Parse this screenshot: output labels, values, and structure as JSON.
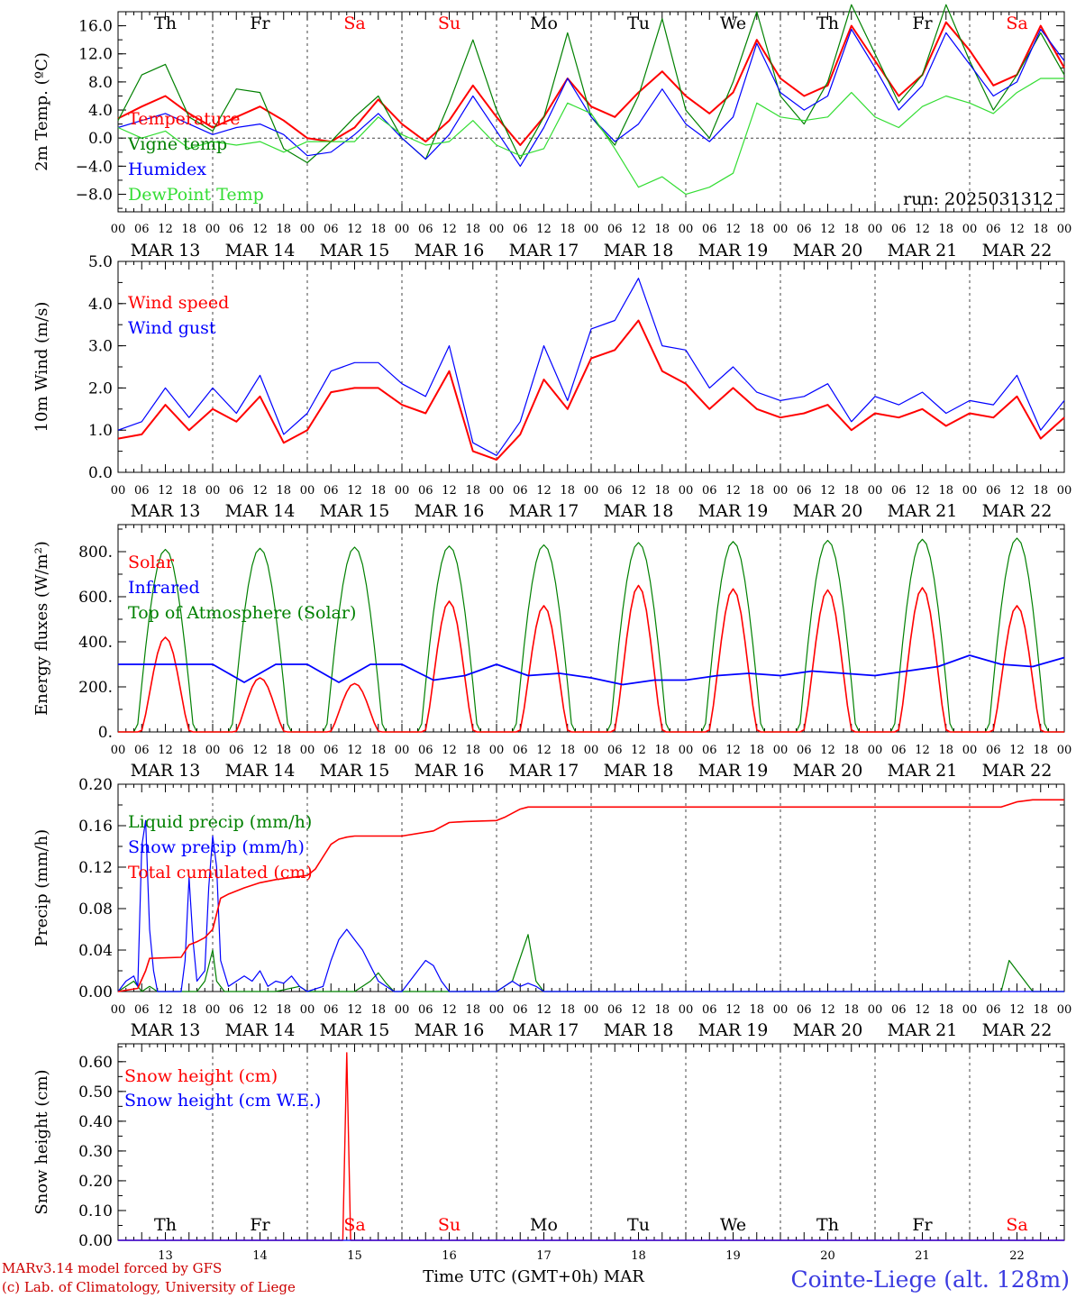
{
  "meta": {
    "footer_line1": "MARv3.14 model forced by GFS",
    "footer_line2": "(c) Lab. of Climatology, University of Liege",
    "station": "Cointe-Liege (alt. 128m)",
    "xaxis_title": "Time UTC (GMT+0h) MAR",
    "run_label": "run: 2025031312"
  },
  "days": {
    "names": [
      "Th",
      "Fr",
      "Sa",
      "Su",
      "Mo",
      "Tu",
      "We",
      "Th",
      "Fr",
      "Sa"
    ],
    "weekend_flags": [
      false,
      false,
      true,
      true,
      false,
      false,
      false,
      false,
      false,
      true
    ],
    "dates": [
      "MAR 13",
      "MAR 14",
      "MAR 15",
      "MAR 16",
      "MAR 17",
      "MAR 18",
      "MAR 19",
      "MAR 20",
      "MAR 21",
      "MAR 22"
    ],
    "numbers": [
      "13",
      "14",
      "15",
      "16",
      "17",
      "18",
      "19",
      "20",
      "21",
      "22"
    ],
    "hour_ticks": [
      "00",
      "06",
      "12",
      "18"
    ],
    "final_hour": "00"
  },
  "colors": {
    "red": "#ff0000",
    "dark_green": "#008000",
    "blue": "#0000ff",
    "light_green": "#33dd33",
    "weekend": "#ff0000"
  },
  "chart_data": [
    {
      "type": "line",
      "ylabel": "2m Temp. (ºC)",
      "ylim": [
        -10.5,
        18
      ],
      "yticks": [
        -8,
        -4,
        0,
        4,
        8,
        12,
        16
      ],
      "ytick_labels": [
        "−8.0",
        "−4.0",
        "0.0",
        "4.0",
        "8.0",
        "12.0",
        "16.0"
      ],
      "zero_line": true,
      "x_hours": [
        0,
        6,
        12,
        18,
        24,
        30,
        36,
        42,
        48,
        54,
        60,
        66,
        72,
        78,
        84,
        90,
        96,
        102,
        108,
        114,
        120,
        126,
        132,
        138,
        144,
        150,
        156,
        162,
        168,
        174,
        180,
        186,
        192,
        198,
        204,
        210,
        216,
        222,
        228,
        234,
        240
      ],
      "series": [
        {
          "name": "Temperature",
          "color": "#ff0000",
          "width": 2,
          "values": [
            2.8,
            4.5,
            6,
            3.5,
            1.5,
            3,
            4.5,
            2.5,
            0,
            -0.5,
            1.5,
            5.5,
            2,
            -0.5,
            2.5,
            7.5,
            3,
            -1,
            3,
            8.5,
            4.5,
            3,
            6.5,
            9.5,
            6,
            3.5,
            6.5,
            14,
            8.5,
            6,
            7.5,
            16,
            11,
            6,
            9,
            16.5,
            12.5,
            7.5,
            9,
            16,
            10
          ]
        },
        {
          "name": "Vigne temp",
          "color": "#008000",
          "width": 1.2,
          "values": [
            2.5,
            9,
            10.5,
            3,
            1,
            7,
            6.5,
            -1.5,
            -3.5,
            -0.5,
            3,
            6,
            0,
            -3,
            5,
            14,
            4,
            -3,
            3,
            15,
            3,
            -1,
            6,
            17,
            4,
            0,
            8,
            18,
            6,
            2,
            8,
            19,
            12,
            5,
            9,
            19,
            11,
            4,
            9,
            15,
            9
          ]
        },
        {
          "name": "Humidex",
          "color": "#0000ff",
          "width": 1.2,
          "values": [
            1.5,
            2.5,
            3.5,
            2,
            0.5,
            1.5,
            2,
            0.5,
            -2.5,
            -2,
            0.5,
            3.5,
            0,
            -3,
            0.5,
            6,
            1,
            -4,
            1.5,
            8.5,
            3,
            -0.5,
            2,
            7,
            2,
            -0.5,
            3,
            13.5,
            6.5,
            4,
            6,
            15.5,
            10,
            4,
            7.5,
            15,
            10.5,
            6,
            8,
            15.5,
            11
          ]
        },
        {
          "name": "DewPoint Temp",
          "color": "#33dd33",
          "width": 1.2,
          "values": [
            1.5,
            0,
            1,
            -1.5,
            -0.5,
            -1,
            -0.5,
            -2,
            -0.5,
            -0.5,
            -0.5,
            3,
            0.5,
            -1,
            -0.5,
            2.5,
            -1,
            -2.5,
            -1.5,
            5,
            3.5,
            -1.5,
            -7,
            -5.5,
            -8,
            -7,
            -5,
            5,
            3,
            2.5,
            3,
            6.5,
            3,
            1.5,
            4.5,
            6,
            5,
            3.5,
            6.5,
            8.5,
            8.5
          ]
        }
      ]
    },
    {
      "type": "line",
      "ylabel": "10m Wind (m/s)",
      "ylim": [
        0,
        5
      ],
      "yticks": [
        0,
        1,
        2,
        3,
        4,
        5
      ],
      "ytick_labels": [
        "0.0",
        "1.0",
        "2.0",
        "3.0",
        "4.0",
        "5.0"
      ],
      "x_hours": [
        0,
        6,
        12,
        18,
        24,
        30,
        36,
        42,
        48,
        54,
        60,
        66,
        72,
        78,
        84,
        90,
        96,
        102,
        108,
        114,
        120,
        126,
        132,
        138,
        144,
        150,
        156,
        162,
        168,
        174,
        180,
        186,
        192,
        198,
        204,
        210,
        216,
        222,
        228,
        234,
        240
      ],
      "series": [
        {
          "name": "Wind speed",
          "color": "#ff0000",
          "width": 2,
          "values": [
            0.8,
            0.9,
            1.6,
            1,
            1.5,
            1.2,
            1.8,
            0.7,
            1,
            1.9,
            2,
            2,
            1.6,
            1.4,
            2.4,
            0.5,
            0.3,
            0.9,
            2.2,
            1.5,
            2.7,
            2.9,
            3.6,
            2.4,
            2.1,
            1.5,
            2,
            1.5,
            1.3,
            1.4,
            1.6,
            1,
            1.4,
            1.3,
            1.5,
            1.1,
            1.4,
            1.3,
            1.8,
            0.8,
            1.3
          ]
        },
        {
          "name": "Wind gust",
          "color": "#0000ff",
          "width": 1.2,
          "values": [
            1,
            1.2,
            2,
            1.3,
            2,
            1.4,
            2.3,
            0.9,
            1.4,
            2.4,
            2.6,
            2.6,
            2.1,
            1.8,
            3,
            0.7,
            0.4,
            1.2,
            3,
            1.7,
            3.4,
            3.6,
            4.6,
            3,
            2.9,
            2,
            2.5,
            1.9,
            1.7,
            1.8,
            2.1,
            1.2,
            1.8,
            1.6,
            1.9,
            1.4,
            1.7,
            1.6,
            2.3,
            1,
            1.7
          ]
        }
      ]
    },
    {
      "type": "line",
      "ylabel": "Energy fluxes (W/m²)",
      "ylim": [
        0,
        920
      ],
      "yticks": [
        0,
        200,
        400,
        600,
        800
      ],
      "ytick_labels": [
        "0.",
        "200.",
        "400.",
        "600.",
        "800."
      ],
      "day_peak_hour": 12,
      "toa_peaks": [
        810,
        815,
        820,
        825,
        830,
        840,
        845,
        850,
        855,
        860
      ],
      "solar_peaks": [
        420,
        240,
        215,
        580,
        560,
        650,
        635,
        630,
        640,
        560
      ],
      "infrared_values": [
        300,
        300,
        300,
        300,
        220,
        300,
        300,
        220,
        300,
        300,
        230,
        250,
        300,
        250,
        260,
        240,
        210,
        230,
        230,
        250,
        260,
        250,
        270,
        260,
        250,
        270,
        290,
        340,
        300,
        290,
        330
      ],
      "infrared_hours": [
        0,
        8,
        16,
        24,
        32,
        40,
        48,
        56,
        64,
        72,
        80,
        88,
        96,
        104,
        112,
        120,
        128,
        136,
        144,
        152,
        160,
        168,
        176,
        184,
        192,
        200,
        208,
        216,
        224,
        232,
        240
      ],
      "series_names": [
        "Solar",
        "Infrared",
        "Top of Atmosphere (Solar)"
      ]
    },
    {
      "type": "line",
      "ylabel": "Precip (mm/h)",
      "ylim": [
        0,
        0.2
      ],
      "yticks": [
        0,
        0.04,
        0.08,
        0.12,
        0.16,
        0.2
      ],
      "ytick_labels": [
        "0.00",
        "0.04",
        "0.08",
        "0.12",
        "0.16",
        "0.20"
      ],
      "series": [
        {
          "name": "Liquid precip (mm/h)",
          "color": "#008000",
          "width": 1.2,
          "x": [
            0,
            4,
            6,
            8,
            10,
            20,
            22,
            24,
            25,
            27,
            30,
            40,
            46,
            48,
            50,
            60,
            62,
            64,
            66,
            68,
            70,
            72,
            96,
            100,
            104,
            106,
            108,
            110,
            112,
            224,
            226,
            228,
            230,
            232,
            240
          ],
          "values": [
            0,
            0.01,
            0,
            0.005,
            0,
            0,
            0.01,
            0.04,
            0.01,
            0,
            0,
            0,
            0.005,
            0,
            0,
            0,
            0.005,
            0.01,
            0.018,
            0.008,
            0,
            0,
            0,
            0.01,
            0.055,
            0.01,
            0,
            0,
            0,
            0,
            0.03,
            0.02,
            0.01,
            0,
            0
          ]
        },
        {
          "name": "Snow precip (mm/h)",
          "color": "#0000ff",
          "width": 1.2,
          "x": [
            0,
            2,
            4,
            5,
            6,
            7,
            8,
            9,
            10,
            16,
            17,
            18,
            19,
            20,
            22,
            23,
            24,
            25,
            26,
            28,
            30,
            32,
            34,
            36,
            38,
            40,
            42,
            44,
            46,
            48,
            52,
            54,
            56,
            58,
            60,
            62,
            64,
            66,
            70,
            72,
            76,
            78,
            80,
            82,
            84,
            86,
            88,
            92,
            96,
            98,
            100,
            102,
            104,
            106,
            108,
            112,
            240
          ],
          "values": [
            0,
            0.01,
            0.015,
            0.005,
            0.14,
            0.165,
            0.06,
            0.02,
            0,
            0,
            0.03,
            0.11,
            0.05,
            0.01,
            0.02,
            0.1,
            0.15,
            0.12,
            0.03,
            0.005,
            0.01,
            0.015,
            0.01,
            0.02,
            0.005,
            0.01,
            0.008,
            0.015,
            0.005,
            0,
            0.005,
            0.03,
            0.05,
            0.06,
            0.05,
            0.04,
            0.025,
            0.01,
            0,
            0,
            0.02,
            0.03,
            0.025,
            0.01,
            0,
            0,
            0,
            0,
            0,
            0.005,
            0.01,
            0.005,
            0.008,
            0.005,
            0,
            0,
            0
          ]
        },
        {
          "name": "Total cumulated (cm)",
          "color": "#ff0000",
          "width": 1.6,
          "x": [
            0,
            5,
            7,
            8,
            16,
            18,
            20,
            22,
            24,
            26,
            28,
            32,
            36,
            40,
            44,
            48,
            50,
            52,
            54,
            56,
            58,
            60,
            64,
            72,
            80,
            84,
            88,
            96,
            98,
            100,
            102,
            104,
            112,
            120,
            136,
            160,
            192,
            224,
            228,
            232,
            240
          ],
          "values": [
            0,
            0.003,
            0.02,
            0.032,
            0.033,
            0.045,
            0.048,
            0.052,
            0.06,
            0.09,
            0.094,
            0.1,
            0.105,
            0.108,
            0.11,
            0.112,
            0.118,
            0.13,
            0.142,
            0.147,
            0.149,
            0.15,
            0.15,
            0.15,
            0.155,
            0.163,
            0.164,
            0.165,
            0.168,
            0.172,
            0.176,
            0.178,
            0.178,
            0.178,
            0.178,
            0.178,
            0.178,
            0.178,
            0.183,
            0.185,
            0.185
          ]
        }
      ]
    },
    {
      "type": "line",
      "ylabel": "Snow height (cm)",
      "ylim": [
        0,
        0.66
      ],
      "yticks": [
        0,
        0.1,
        0.2,
        0.3,
        0.4,
        0.5,
        0.6
      ],
      "ytick_labels": [
        "0.00",
        "0.10",
        "0.20",
        "0.30",
        "0.40",
        "0.50",
        "0.60"
      ],
      "series": [
        {
          "name": "Snow height (cm)",
          "color": "#ff0000",
          "width": 1.4,
          "x": [
            0,
            57,
            58,
            59,
            240
          ],
          "values": [
            0,
            0,
            0.63,
            0,
            0
          ]
        },
        {
          "name": "Snow height (cm W.E.)",
          "color": "#0000ff",
          "width": 1.2,
          "x": [
            0,
            240
          ],
          "values": [
            0,
            0
          ]
        }
      ]
    }
  ]
}
